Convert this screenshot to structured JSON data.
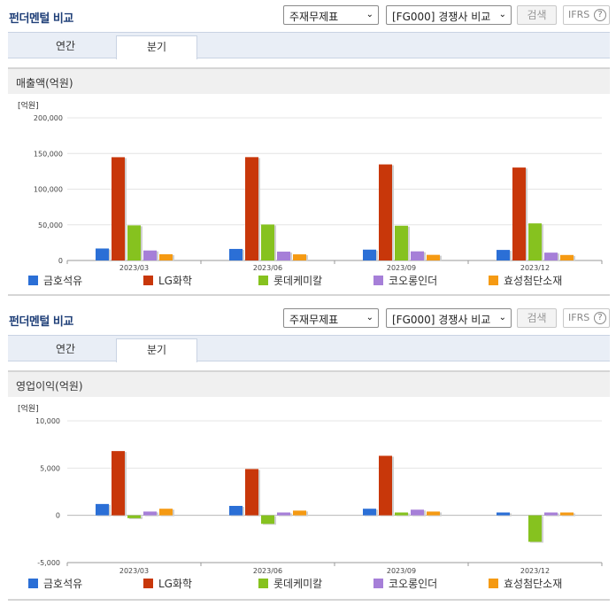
{
  "panels": [
    {
      "title": "펀더멘털 비교",
      "select1": "주재무제표",
      "select2": "[FG000] 경쟁사 비교",
      "search_label": "검색",
      "ifrs_label": "IFRS",
      "help_glyph": "?",
      "tabs": [
        "연간",
        "분기"
      ],
      "active_tab": "분기",
      "chart_heading": "매출액(억원)"
    },
    {
      "title": "펀더멘털 비교",
      "select1": "주재무제표",
      "select2": "[FG000] 경쟁사 비교",
      "search_label": "검색",
      "ifrs_label": "IFRS",
      "help_glyph": "?",
      "tabs": [
        "연간",
        "분기"
      ],
      "active_tab": "분기",
      "chart_heading": "영업이익(억원)"
    }
  ],
  "legend": [
    {
      "name": "금호석유",
      "color": "#2b6fd6"
    },
    {
      "name": "LG화학",
      "color": "#c8370a"
    },
    {
      "name": "롯데케미칼",
      "color": "#86c21f"
    },
    {
      "name": "코오롱인더",
      "color": "#a67fd8"
    },
    {
      "name": "효성첨단소재",
      "color": "#f59a13"
    }
  ],
  "chart_data": [
    {
      "type": "bar",
      "unit_label": "[억원]",
      "categories": [
        "2023/03",
        "2023/06",
        "2023/09",
        "2023/12"
      ],
      "ylim": [
        0,
        200000
      ],
      "yticks": [
        0,
        50000,
        100000,
        150000,
        200000
      ],
      "ytick_labels": [
        "0",
        "50,000",
        "100,000",
        "150,000",
        "200,000"
      ],
      "series": [
        {
          "name": "금호석유",
          "values": [
            16800,
            16200,
            15200,
            14800
          ]
        },
        {
          "name": "LG화학",
          "values": [
            144800,
            144900,
            134700,
            130300
          ]
        },
        {
          "name": "롯데케미칼",
          "values": [
            49200,
            50400,
            48700,
            52000
          ]
        },
        {
          "name": "코오롱인더",
          "values": [
            14000,
            12400,
            12800,
            11000
          ]
        },
        {
          "name": "효성첨단소재",
          "values": [
            8700,
            8600,
            7900,
            7700
          ]
        }
      ]
    },
    {
      "type": "bar",
      "unit_label": "[억원]",
      "categories": [
        "2023/03",
        "2023/06",
        "2023/09",
        "2023/12"
      ],
      "ylim": [
        -5000,
        10000
      ],
      "yticks": [
        -5000,
        0,
        5000,
        10000
      ],
      "ytick_labels": [
        "-5,000",
        "0",
        "5,000",
        "10,000"
      ],
      "series": [
        {
          "name": "금호석유",
          "values": [
            1200,
            1000,
            700,
            300
          ]
        },
        {
          "name": "LG화학",
          "values": [
            6800,
            4900,
            6300,
            0
          ]
        },
        {
          "name": "롯데케미칼",
          "values": [
            -300,
            -900,
            300,
            -2800
          ]
        },
        {
          "name": "코오롱인더",
          "values": [
            400,
            300,
            600,
            300
          ]
        },
        {
          "name": "효성첨단소재",
          "values": [
            700,
            500,
            400,
            300
          ]
        }
      ]
    }
  ]
}
